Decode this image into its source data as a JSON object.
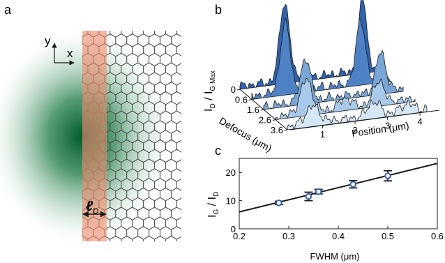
{
  "panel_a": {
    "label": "a",
    "axis_y_label": "y",
    "axis_x_label": "x",
    "length_symbol": "ℓ",
    "length_subscript": "D",
    "colors": {
      "glow": "#005a28",
      "stripe": "#f08c70",
      "lattice": "#505050"
    }
  },
  "panel_b": {
    "label": "b",
    "ylabel_main": "I",
    "ylabel_sub1": "D",
    "ylabel_slash": " / I",
    "ylabel_sub2": "G Max",
    "defocus_label": "Defocus (μm)",
    "position_label": "Position (μm)",
    "defocus_ticks": [
      "0",
      "0.6",
      "1.6",
      "2.6",
      "3.6"
    ],
    "position_ticks": [
      "1",
      "2",
      "3",
      "4"
    ],
    "slice_colors": [
      "#2f63ad",
      "#4f82c4",
      "#7aa5d7",
      "#a8c9e9",
      "#d6e8f7"
    ]
  },
  "panel_c": {
    "label": "c",
    "ylabel_main": "I",
    "ylabel_sub1": "G",
    "ylabel_slash": " / I",
    "ylabel_sub2": "D",
    "xlabel": "FWHM (μm)",
    "marker_color": "#3a5fb0"
  },
  "chart_data": {
    "type": "scatter",
    "x": [
      0.28,
      0.34,
      0.36,
      0.43,
      0.5
    ],
    "y": [
      9.2,
      11.5,
      13.2,
      15.8,
      18.8
    ],
    "yerr": [
      0.6,
      1.5,
      0.8,
      1.3,
      1.8
    ],
    "fit_line": {
      "x": [
        0.2,
        0.6
      ],
      "y": [
        6.0,
        23.2
      ]
    },
    "xlim": [
      0.2,
      0.6
    ],
    "ylim": [
      0,
      25
    ],
    "xticks": [
      "0.2",
      "0.3",
      "0.4",
      "0.5",
      "0.6"
    ],
    "yticks": [
      "0",
      "10",
      "20"
    ],
    "grid": false
  }
}
